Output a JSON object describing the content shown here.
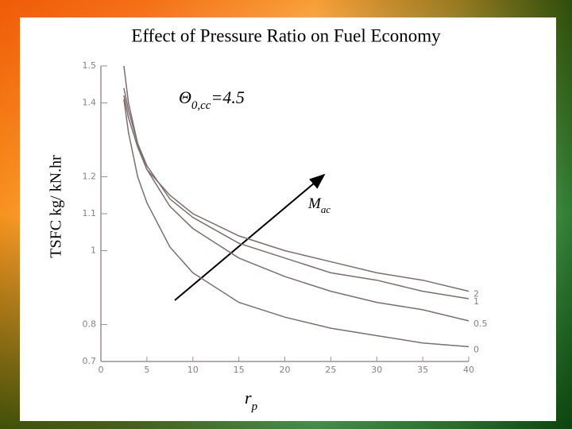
{
  "chart_data": {
    "type": "line",
    "title": "Effect of Pressure Ratio on Fuel Economy",
    "y_label": "TSFC kg/ kN.hr",
    "x_label": {
      "base": "r",
      "sub": "p"
    },
    "annotations": [
      {
        "base": "Θ",
        "sub": "0,cc",
        "rest": "=4.5"
      },
      {
        "base": "M",
        "sub": "ac"
      }
    ],
    "x": [
      2.5,
      3,
      4,
      5,
      7.5,
      10,
      15,
      20,
      25,
      30,
      35,
      40
    ],
    "series": [
      {
        "name": "0",
        "color": "#7d6e6e",
        "values": [
          1.41,
          1.32,
          1.2,
          1.13,
          1.01,
          0.94,
          0.86,
          0.82,
          0.79,
          0.77,
          0.75,
          0.74
        ]
      },
      {
        "name": "0.5",
        "color": "#7d6e6e",
        "values": [
          1.5,
          1.4,
          1.29,
          1.22,
          1.12,
          1.06,
          0.98,
          0.93,
          0.89,
          0.86,
          0.84,
          0.81
        ]
      },
      {
        "name": "1",
        "color": "#7d6e6e",
        "values": [
          1.44,
          1.38,
          1.29,
          1.23,
          1.14,
          1.09,
          1.02,
          0.98,
          0.94,
          0.92,
          0.89,
          0.87
        ]
      },
      {
        "name": "2",
        "color": "#7d6e6e",
        "values": [
          1.42,
          1.36,
          1.28,
          1.22,
          1.15,
          1.1,
          1.04,
          1.0,
          0.97,
          0.94,
          0.92,
          0.89
        ]
      }
    ],
    "xlim": [
      0,
      40
    ],
    "xticks": [
      0,
      5,
      10,
      15,
      20,
      25,
      30,
      35,
      40
    ],
    "ylim": [
      0.7,
      1.5
    ],
    "yticks": [
      0.7,
      0.8,
      1.0,
      1.1,
      1.2,
      1.4,
      1.5
    ]
  }
}
